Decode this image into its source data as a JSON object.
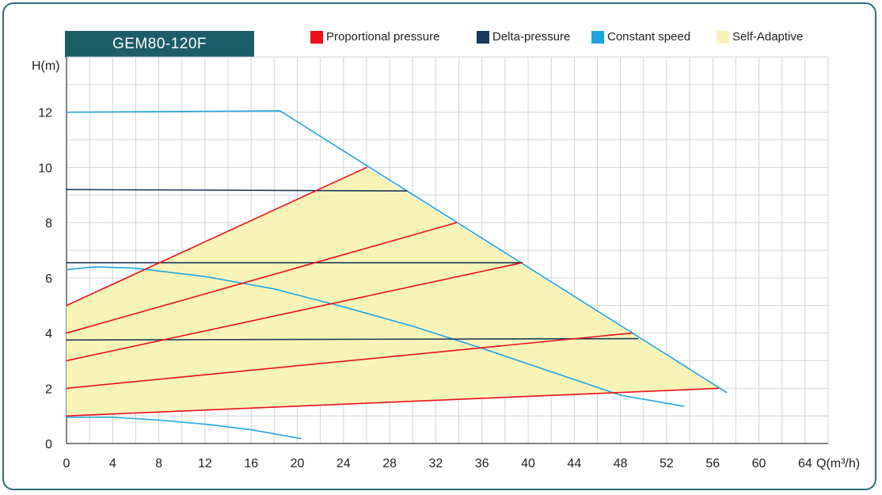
{
  "title": "GEM80-120F",
  "legend": [
    {
      "label": "Proportional pressure",
      "color": "#e8101b"
    },
    {
      "label": "Delta-pressure",
      "color": "#1a3a5c"
    },
    {
      "label": "Constant speed",
      "color": "#1fa3e0"
    },
    {
      "label": "Self-Adaptive",
      "color": "#f8f4b8"
    }
  ],
  "chart_data": {
    "type": "line",
    "xlabel": "Q(m³/h)",
    "ylabel": "H(m)",
    "xlim": [
      0,
      66
    ],
    "ylim": [
      0,
      14
    ],
    "xticks": [
      0,
      4,
      8,
      12,
      16,
      20,
      24,
      28,
      32,
      36,
      40,
      44,
      48,
      52,
      56,
      60,
      64
    ],
    "yticks": [
      0,
      2,
      4,
      6,
      8,
      10,
      12
    ],
    "xgrid_step": 2,
    "ygrid_step": 1,
    "grid": true,
    "legend_position": "top",
    "series": [
      {
        "name": "Self-Adaptive",
        "kind": "area",
        "color": "#f8f4b8",
        "points": [
          [
            0,
            5.0
          ],
          [
            26,
            10.0
          ],
          [
            56.5,
            2.0
          ],
          [
            0,
            1.0
          ]
        ]
      },
      {
        "name": "Constant speed",
        "kind": "line",
        "color": "#1fa3e0",
        "segments": [
          [
            [
              0,
              12.0
            ],
            [
              18.5,
              12.05
            ],
            [
              57.2,
              1.85
            ]
          ],
          [
            [
              0,
              6.3
            ],
            [
              2.5,
              6.4
            ],
            [
              6,
              6.35
            ],
            [
              12,
              6.05
            ],
            [
              18,
              5.6
            ],
            [
              24,
              4.95
            ],
            [
              30,
              4.25
            ],
            [
              36,
              3.45
            ],
            [
              42,
              2.6
            ],
            [
              48,
              1.75
            ],
            [
              53.5,
              1.35
            ]
          ],
          [
            [
              0,
              0.95
            ],
            [
              4,
              0.95
            ],
            [
              8,
              0.85
            ],
            [
              12,
              0.7
            ],
            [
              16,
              0.5
            ],
            [
              20.3,
              0.18
            ]
          ]
        ]
      },
      {
        "name": "Delta-pressure",
        "kind": "line",
        "color": "#1a3a5c",
        "segments": [
          [
            [
              0,
              9.2
            ],
            [
              29.5,
              9.15
            ]
          ],
          [
            [
              0,
              6.55
            ],
            [
              39.5,
              6.55
            ]
          ],
          [
            [
              0,
              3.75
            ],
            [
              49.5,
              3.8
            ]
          ]
        ]
      },
      {
        "name": "Proportional pressure",
        "kind": "line",
        "color": "#e8101b",
        "segments": [
          [
            [
              0,
              5.0
            ],
            [
              26,
              10.0
            ]
          ],
          [
            [
              0,
              4.0
            ],
            [
              33.8,
              8.0
            ]
          ],
          [
            [
              0,
              3.0
            ],
            [
              39.5,
              6.55
            ]
          ],
          [
            [
              0,
              2.0
            ],
            [
              49,
              4.0
            ]
          ],
          [
            [
              0,
              1.0
            ],
            [
              56.5,
              2.0
            ]
          ]
        ]
      }
    ]
  }
}
